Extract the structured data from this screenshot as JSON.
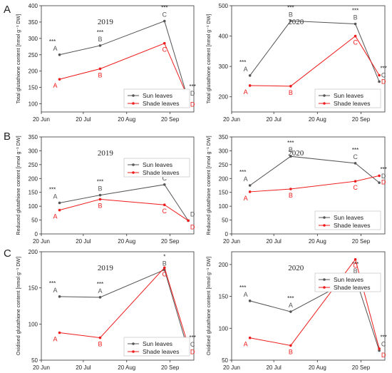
{
  "colors": {
    "sun": "#555555",
    "shade": "#ee1c1c",
    "text": "#222222",
    "axis": "#333333"
  },
  "chart_data": [
    {
      "panel": "A",
      "type": "line",
      "title": "2019",
      "ylabel": "Total glutathione content [nmol g⁻¹ DW]",
      "xlabel": "",
      "x_ticks": [
        "20 Jun",
        "20 Jul",
        "20 Aug",
        "20 Sep"
      ],
      "x_tick_days": [
        0,
        30,
        61,
        92
      ],
      "xlim_days": [
        0,
        109
      ],
      "ylim": [
        75,
        400
      ],
      "y_ticks": [
        100,
        150,
        200,
        250,
        300,
        350,
        400
      ],
      "legend": "bottom-right",
      "series": [
        {
          "name": "Sun leaves",
          "color_key": "sun",
          "x_days": [
            13,
            42,
            88,
            105
          ],
          "values": [
            250,
            278,
            353,
            112
          ],
          "letters": [
            "A",
            "B",
            "C",
            "D"
          ],
          "stars": [
            "***",
            "***",
            "***",
            "***"
          ]
        },
        {
          "name": "Shade leaves",
          "color_key": "shade",
          "x_days": [
            13,
            42,
            88,
            105
          ],
          "values": [
            175,
            207,
            285,
            117
          ],
          "letters": [
            "A",
            "B",
            "C",
            "D"
          ]
        }
      ]
    },
    {
      "panel": "",
      "type": "line",
      "title": "2020",
      "ylabel": "Total glutathione content [nmol g⁻¹ DW]",
      "xlabel": "",
      "x_ticks": [
        "20 Jun",
        "20 Jul",
        "20 Aug",
        "20 Sep"
      ],
      "x_tick_days": [
        0,
        30,
        61,
        92
      ],
      "xlim_days": [
        0,
        109
      ],
      "ylim": [
        150,
        500
      ],
      "y_ticks": [
        200,
        300,
        400,
        500
      ],
      "legend": "bottom-right",
      "series": [
        {
          "name": "Sun leaves",
          "color_key": "sun",
          "x_days": [
            13,
            42,
            88,
            105
          ],
          "values": [
            270,
            450,
            440,
            250
          ],
          "letters": [
            "A",
            "B",
            "B",
            "C"
          ],
          "stars": [
            "***",
            "***",
            "***",
            "***"
          ]
        },
        {
          "name": "Shade leaves",
          "color_key": "shade",
          "x_days": [
            13,
            42,
            88,
            105
          ],
          "values": [
            237,
            235,
            400,
            271
          ],
          "letters": [
            "A",
            "B",
            "C",
            "D"
          ]
        }
      ]
    },
    {
      "panel": "B",
      "type": "line",
      "title": "2019",
      "ylabel": "Reduced glutathione content [nmol g⁻¹ DW]",
      "xlabel": "",
      "x_ticks": [
        "20 Jun",
        "20 Jul",
        "20 Aug",
        "20 Sep"
      ],
      "x_tick_days": [
        0,
        30,
        61,
        92
      ],
      "xlim_days": [
        0,
        109
      ],
      "ylim": [
        0,
        350
      ],
      "y_ticks": [
        0,
        50,
        100,
        150,
        200,
        250,
        300,
        350
      ],
      "legend": "top-right",
      "series": [
        {
          "name": "Sun leaves",
          "color_key": "sun",
          "x_days": [
            13,
            42,
            88,
            105
          ],
          "values": [
            112,
            140,
            178,
            48
          ],
          "letters": [
            "A",
            "B",
            "C",
            "D"
          ],
          "stars": [
            "***",
            "***",
            "",
            ""
          ]
        },
        {
          "name": "Shade leaves",
          "color_key": "shade",
          "x_days": [
            13,
            42,
            88,
            105
          ],
          "values": [
            86,
            125,
            105,
            48
          ],
          "letters": [
            "A",
            "B",
            "C",
            "D"
          ]
        }
      ]
    },
    {
      "panel": "",
      "type": "line",
      "title": "2020",
      "ylabel": "Reduced glutathione content [nmol g⁻¹ DW]",
      "xlabel": "",
      "x_ticks": [
        "20 Jun",
        "20 Jul",
        "20 Aug",
        "20 Sep"
      ],
      "x_tick_days": [
        0,
        30,
        61,
        92
      ],
      "xlim_days": [
        0,
        109
      ],
      "ylim": [
        0,
        350
      ],
      "y_ticks": [
        0,
        50,
        100,
        150,
        200,
        250,
        300,
        350
      ],
      "legend": "bottom-right",
      "series": [
        {
          "name": "Sun leaves",
          "color_key": "sun",
          "x_days": [
            13,
            42,
            88,
            105
          ],
          "values": [
            175,
            280,
            255,
            185
          ],
          "letters": [
            "A",
            "B",
            "C",
            "D"
          ],
          "stars": [
            "***",
            "***",
            "***",
            "***"
          ]
        },
        {
          "name": "Shade leaves",
          "color_key": "shade",
          "x_days": [
            13,
            42,
            88,
            105
          ],
          "values": [
            152,
            162,
            190,
            210
          ],
          "letters": [
            "A",
            "B",
            "C",
            "D"
          ]
        }
      ]
    },
    {
      "panel": "C",
      "type": "line",
      "title": "2019",
      "ylabel": "Oxidised glutathione content [nmol g⁻¹ DW]",
      "xlabel": "",
      "x_ticks": [
        "20 Jun",
        "20 Jul",
        "20 Aug",
        "20 Sep"
      ],
      "x_tick_days": [
        0,
        30,
        61,
        92
      ],
      "xlim_days": [
        0,
        109
      ],
      "ylim": [
        50,
        200
      ],
      "y_ticks": [
        50,
        100,
        150,
        200
      ],
      "legend": "bottom-right",
      "series": [
        {
          "name": "Sun leaves",
          "color_key": "sun",
          "x_days": [
            13,
            42,
            88,
            105
          ],
          "values": [
            138,
            137,
            175,
            63
          ],
          "letters": [
            "A",
            "A",
            "B",
            "C"
          ],
          "stars": [
            "***",
            "***",
            "*",
            "***"
          ]
        },
        {
          "name": "Shade leaves",
          "color_key": "shade",
          "x_days": [
            13,
            42,
            88,
            105
          ],
          "values": [
            88,
            81,
            178,
            70
          ],
          "letters": [
            "A",
            "B",
            "C",
            "D"
          ]
        }
      ]
    },
    {
      "panel": "",
      "type": "line",
      "title": "2020",
      "ylabel": "Oxidised glutathione content [nmol g⁻¹ DW]",
      "xlabel": "",
      "x_ticks": [
        "20 Jun",
        "20 Jul",
        "20 Aug",
        "20 Sep"
      ],
      "x_tick_days": [
        0,
        30,
        61,
        92
      ],
      "xlim_days": [
        0,
        109
      ],
      "ylim": [
        50,
        220
      ],
      "y_ticks": [
        50,
        100,
        150,
        200
      ],
      "legend": "top-right",
      "series": [
        {
          "name": "Sun leaves",
          "color_key": "sun",
          "x_days": [
            13,
            42,
            88,
            105
          ],
          "values": [
            143,
            126,
            180,
            65
          ],
          "letters": [
            "A",
            "A",
            "B",
            "C"
          ],
          "stars": [
            "***",
            "***",
            "***",
            "***"
          ]
        },
        {
          "name": "Shade leaves",
          "color_key": "shade",
          "x_days": [
            13,
            42,
            88,
            105
          ],
          "values": [
            85,
            73,
            208,
            68
          ],
          "letters": [
            "A",
            "B",
            "C",
            "D"
          ]
        }
      ]
    }
  ]
}
